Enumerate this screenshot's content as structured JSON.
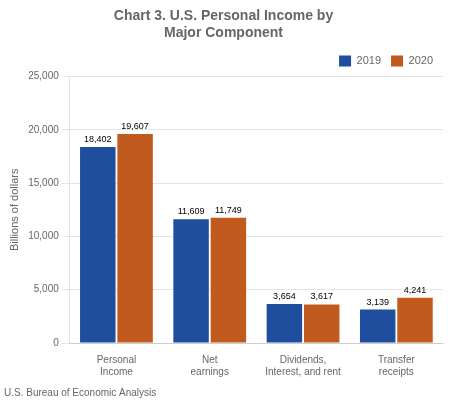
{
  "chart_data": {
    "type": "bar",
    "title": "Chart 3. U.S. Personal Income by\nMajor Component",
    "ylabel": "Billions of dollars",
    "footer": "U.S. Bureau of Economic Analysis",
    "categories": [
      "Personal\nIncome",
      "Net\nearnings",
      "Dividends,\nInterest, and rent",
      "Transfer\nreceipts"
    ],
    "series": [
      {
        "name": "2019",
        "color": "#1f4e9e",
        "values": [
          18402,
          11609,
          3654,
          3139
        ],
        "value_labels": [
          "18,402",
          "11,609",
          "3,654",
          "3,139"
        ]
      },
      {
        "name": "2020",
        "color": "#c05a1f",
        "values": [
          19607,
          11749,
          3617,
          4241
        ],
        "value_labels": [
          "19,607",
          "11,749",
          "3,617",
          "4,241"
        ]
      }
    ],
    "ylim": [
      0,
      25000
    ],
    "yticks": [
      0,
      {
        "value": 5000,
        "label": "5,000"
      },
      {
        "value": 10000,
        "label": "10,000"
      },
      {
        "value": 15000,
        "label": "15,000"
      },
      {
        "value": 20000,
        "label": "20,000"
      },
      {
        "value": 25000,
        "label": "25,000"
      }
    ],
    "grid": true,
    "legend": "upper right",
    "data_labels": true
  }
}
